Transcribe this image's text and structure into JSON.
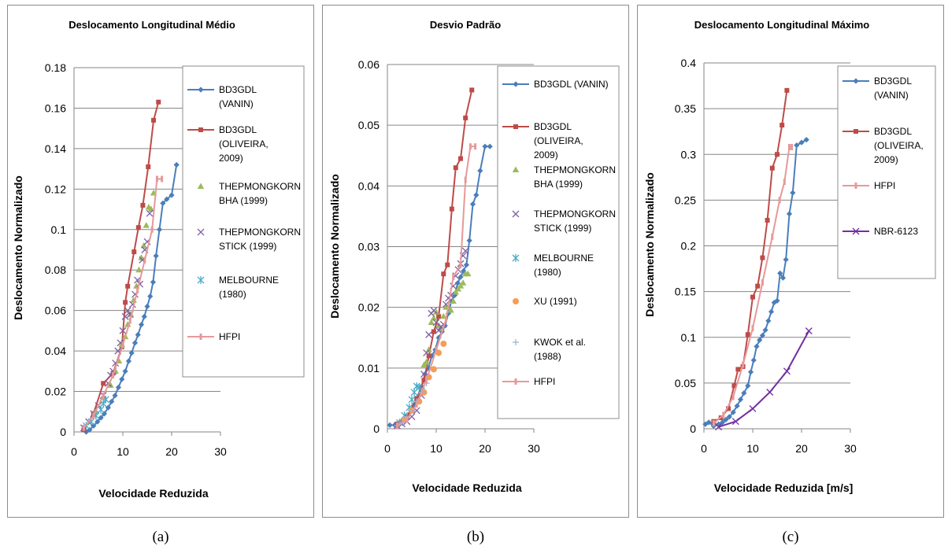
{
  "panels": [
    {
      "caption": "(a)",
      "chart_data": {
        "type": "line",
        "title": "Deslocamento Longitudinal Médio",
        "xlabel": "Velocidade Reduzida",
        "ylabel": "Deslocamento Normalizado",
        "xlim": [
          0,
          30
        ],
        "ylim": [
          0,
          0.18
        ],
        "xticks": [
          0,
          10,
          20,
          30
        ],
        "xtick_labels": [
          "0",
          "10",
          "20",
          "30"
        ],
        "yticks": [
          0,
          0.02,
          0.04,
          0.06,
          0.08,
          0.1,
          0.12,
          0.14,
          0.16,
          0.18
        ],
        "ytick_labels": [
          "0",
          "0.02",
          "0.04",
          "0.06",
          "0.08",
          "0.1",
          "0.12",
          "0.14",
          "0.16",
          "0.18"
        ],
        "grid": "horizontal",
        "legend_position": "right",
        "series": [
          {
            "name": "BD3GDL (VANIN)",
            "color": "#4a7ebb",
            "marker": "diamond",
            "line": true,
            "x": [
              2.5,
              3.2,
              4.0,
              4.8,
              5.5,
              6.2,
              7.0,
              7.7,
              8.4,
              9.1,
              9.8,
              10.5,
              11.2,
              11.8,
              12.5,
              13.1,
              13.8,
              14.4,
              15.0,
              15.6,
              16.2,
              16.8,
              17.5,
              18.2,
              19.0,
              20.0,
              21.0
            ],
            "y": [
              0.0,
              0.001,
              0.003,
              0.005,
              0.007,
              0.009,
              0.012,
              0.015,
              0.018,
              0.022,
              0.026,
              0.03,
              0.035,
              0.039,
              0.044,
              0.048,
              0.053,
              0.057,
              0.062,
              0.067,
              0.074,
              0.087,
              0.1,
              0.113,
              0.115,
              0.117,
              0.132
            ]
          },
          {
            "name": "BD3GDL (OLIVEIRA, 2009)",
            "color": "#be4b48",
            "marker": "square",
            "line": true,
            "x": [
              2.0,
              4.0,
              6.0,
              8.0,
              9.8,
              10.5,
              11.0,
              12.3,
              13.2,
              14.1,
              15.2,
              16.3,
              17.3
            ],
            "y": [
              0.001,
              0.009,
              0.024,
              0.029,
              0.042,
              0.064,
              0.072,
              0.089,
              0.101,
              0.112,
              0.131,
              0.154,
              0.163
            ]
          },
          {
            "name": "THEPMONGKORN BHA (1999)",
            "color": "#9bbb59",
            "marker": "triangle",
            "line": false,
            "x": [
              4.5,
              6.0,
              7.5,
              8.5,
              9.2,
              9.8,
              10.5,
              11.0,
              11.6,
              12.2,
              12.8,
              13.3,
              13.8,
              14.3,
              14.8,
              15.3,
              15.8,
              16.3
            ],
            "y": [
              0.01,
              0.017,
              0.023,
              0.03,
              0.035,
              0.043,
              0.047,
              0.053,
              0.058,
              0.065,
              0.072,
              0.08,
              0.086,
              0.092,
              0.102,
              0.111,
              0.11,
              0.118
            ]
          },
          {
            "name": "THEPMONGKORN STICK (1999)",
            "color": "#7d60a0",
            "marker": "x",
            "line": false,
            "x": [
              2.0,
              3.0,
              4.0,
              5.0,
              6.0,
              7.0,
              7.5,
              8.0,
              8.5,
              9.0,
              9.5,
              10.0,
              10.5,
              11.0,
              11.5,
              12.0,
              12.5,
              13.0,
              13.5,
              14.0,
              14.5,
              15.0,
              15.5
            ],
            "y": [
              0.002,
              0.005,
              0.009,
              0.013,
              0.018,
              0.024,
              0.028,
              0.03,
              0.034,
              0.04,
              0.044,
              0.05,
              0.057,
              0.06,
              0.058,
              0.063,
              0.068,
              0.075,
              0.073,
              0.085,
              0.09,
              0.094,
              0.108
            ]
          },
          {
            "name": "MELBOURNE (1980)",
            "color": "#4bacc6",
            "marker": "star",
            "line": false,
            "x": [
              2.5,
              3.5,
              4.5,
              5.5,
              6.0,
              6.5
            ],
            "y": [
              0.003,
              0.005,
              0.008,
              0.011,
              0.014,
              0.016
            ]
          },
          {
            "name": "HFPI",
            "color": "#e6999a",
            "marker": "dash",
            "line": true,
            "x": [
              2.0,
              4.0,
              6.0,
              8.0,
              10.0,
              11.5,
              13.0,
              14.5,
              16.0,
              17.0,
              18.0
            ],
            "y": [
              0.002,
              0.008,
              0.018,
              0.028,
              0.043,
              0.055,
              0.07,
              0.085,
              0.1,
              0.125,
              0.125
            ]
          }
        ]
      }
    },
    {
      "caption": "(b)",
      "chart_data": {
        "type": "line",
        "title": "Desvio Padrão",
        "xlabel": "Velocidade Reduzida",
        "ylabel": "Deslocamento Normalizado",
        "xlim": [
          0,
          30
        ],
        "ylim": [
          0,
          0.06
        ],
        "xticks": [
          0,
          10,
          20,
          30
        ],
        "xtick_labels": [
          "0",
          "10",
          "20",
          "30"
        ],
        "yticks": [
          0,
          0.01,
          0.02,
          0.03,
          0.04,
          0.05,
          0.06
        ],
        "ytick_labels": [
          "0",
          "0.01",
          "0.02",
          "0.03",
          "0.04",
          "0.05",
          "0.06"
        ],
        "grid": "horizontal",
        "legend_position": "right",
        "series": [
          {
            "name": "BD3GDL (VANIN)",
            "color": "#4a7ebb",
            "marker": "diamond",
            "line": true,
            "x": [
              0.5,
              1.5,
              2.5,
              3.2,
              4.0,
              4.8,
              5.5,
              6.2,
              7.0,
              7.7,
              8.4,
              9.1,
              9.8,
              10.5,
              11.2,
              11.8,
              12.5,
              13.1,
              13.8,
              14.4,
              15.0,
              15.6,
              16.2,
              16.8,
              17.5,
              18.2,
              19.0,
              20.0,
              21.0
            ],
            "y": [
              0.0006,
              0.0006,
              0.001,
              0.0015,
              0.002,
              0.003,
              0.004,
              0.005,
              0.007,
              0.009,
              0.01,
              0.012,
              0.013,
              0.015,
              0.016,
              0.017,
              0.019,
              0.021,
              0.022,
              0.024,
              0.025,
              0.026,
              0.027,
              0.031,
              0.037,
              0.0385,
              0.0425,
              0.0465,
              0.0465
            ]
          },
          {
            "name": "BD3GDL (OLIVEIRA, 2009)",
            "color": "#be4b48",
            "marker": "square",
            "line": true,
            "x": [
              2.0,
              4.0,
              6.0,
              7.5,
              8.5,
              9.5,
              10.5,
              11.5,
              12.3,
              13.2,
              14.0,
              15.0,
              16.0,
              17.3
            ],
            "y": [
              0.0008,
              0.002,
              0.005,
              0.008,
              0.012,
              0.016,
              0.0185,
              0.0255,
              0.027,
              0.0362,
              0.043,
              0.0445,
              0.0512,
              0.0558
            ]
          },
          {
            "name": "THEPMONGKORN BHA (1999)",
            "color": "#9bbb59",
            "marker": "triangle",
            "line": false,
            "x": [
              7.5,
              8.0,
              8.5,
              9.0,
              9.5,
              10.0,
              10.5,
              11.0,
              11.5,
              12.0,
              12.5,
              13.0,
              13.5,
              14.0,
              14.5,
              15.0,
              15.5,
              16.0,
              16.5
            ],
            "y": [
              0.0105,
              0.011,
              0.013,
              0.0175,
              0.0182,
              0.0192,
              0.017,
              0.0165,
              0.0185,
              0.02,
              0.02,
              0.0195,
              0.021,
              0.0225,
              0.023,
              0.0235,
              0.024,
              0.0255,
              0.0255
            ]
          },
          {
            "name": "THEPMONGKORN STICK (1999)",
            "color": "#7d60a0",
            "marker": "x",
            "line": false,
            "x": [
              2.0,
              3.0,
              4.0,
              5.0,
              6.0,
              7.0,
              7.5,
              8.0,
              8.5,
              9.0,
              9.5,
              10.0,
              10.5,
              11.0,
              11.5,
              12.0,
              12.5,
              13.0,
              13.5,
              14.0,
              14.5,
              15.0,
              15.5,
              16.0
            ],
            "y": [
              0.0005,
              0.0008,
              0.0012,
              0.002,
              0.003,
              0.0055,
              0.009,
              0.0125,
              0.0155,
              0.019,
              0.0195,
              0.0175,
              0.0162,
              0.0168,
              0.0172,
              0.0205,
              0.0215,
              0.022,
              0.0235,
              0.0252,
              0.0262,
              0.0272,
              0.0285,
              0.0293
            ]
          },
          {
            "name": "MELBOURNE (1980)",
            "color": "#4bacc6",
            "marker": "star",
            "line": false,
            "x": [
              2.5,
              3.5,
              4.5,
              5.0,
              5.5,
              6.0,
              6.5,
              7.0
            ],
            "y": [
              0.001,
              0.0022,
              0.0035,
              0.0048,
              0.006,
              0.007,
              0.0068,
              0.0062
            ]
          },
          {
            "name": "XU (1991)",
            "color": "#f59d56",
            "marker": "circle",
            "line": false,
            "x": [
              3.5,
              5.0,
              6.5,
              7.5,
              8.5,
              9.5,
              10.5,
              11.5
            ],
            "y": [
              0.0015,
              0.003,
              0.0045,
              0.006,
              0.0085,
              0.0098,
              0.0125,
              0.014
            ]
          },
          {
            "name": "KWOK et al. (1988)",
            "color": "#95b3d7",
            "marker": "plus",
            "line": false,
            "x": [
              2.0,
              3.0,
              4.0,
              5.0,
              6.0,
              7.0,
              8.0
            ],
            "y": [
              0.0005,
              0.001,
              0.002,
              0.003,
              0.0045,
              0.006,
              0.0075
            ]
          },
          {
            "name": "HFPI",
            "color": "#e6999a",
            "marker": "dash",
            "line": true,
            "x": [
              2.0,
              4.0,
              6.0,
              8.0,
              10.0,
              12.0,
              13.5,
              15.0,
              16.0,
              17.0,
              18.0
            ],
            "y": [
              0.0005,
              0.0015,
              0.004,
              0.008,
              0.013,
              0.018,
              0.025,
              0.027,
              0.041,
              0.0465,
              0.0465
            ]
          }
        ]
      }
    },
    {
      "caption": "(c)",
      "chart_data": {
        "type": "line",
        "title": "Deslocamento Longitudinal Máximo",
        "xlabel": "Velocidade Reduzida [m/s]",
        "ylabel": "Deslocamento Normalizado",
        "xlim": [
          0,
          30
        ],
        "ylim": [
          0,
          0.4
        ],
        "xticks": [
          0,
          10,
          20,
          30
        ],
        "xtick_labels": [
          "0",
          "10",
          "20",
          "30"
        ],
        "yticks": [
          0,
          0.05,
          0.1,
          0.15,
          0.2,
          0.25,
          0.3,
          0.35,
          0.4
        ],
        "ytick_labels": [
          "0",
          "0.05",
          "0.1",
          "0.15",
          "0.2",
          "0.25",
          "0.3",
          "0.35",
          "0.4"
        ],
        "grid": "horizontal",
        "legend_position": "right",
        "series": [
          {
            "name": "BD3GDL (VANIN)",
            "color": "#4a7ebb",
            "marker": "diamond",
            "line": true,
            "x": [
              0.3,
              1.0,
              2.0,
              3.0,
              3.8,
              4.5,
              5.2,
              6.0,
              6.8,
              7.5,
              8.2,
              9.0,
              9.6,
              10.2,
              10.8,
              11.4,
              12.0,
              12.6,
              13.2,
              13.8,
              14.4,
              15.0,
              15.6,
              16.2,
              16.8,
              17.5,
              18.2,
              19.0,
              20.0,
              21.0
            ],
            "y": [
              0.005,
              0.007,
              0.003,
              0.005,
              0.007,
              0.01,
              0.013,
              0.018,
              0.025,
              0.032,
              0.039,
              0.047,
              0.062,
              0.075,
              0.09,
              0.097,
              0.102,
              0.108,
              0.118,
              0.128,
              0.138,
              0.14,
              0.17,
              0.165,
              0.185,
              0.235,
              0.258,
              0.31,
              0.313,
              0.316
            ]
          },
          {
            "name": "BD3GDL (OLIVEIRA, 2009)",
            "color": "#be4b48",
            "marker": "square",
            "line": true,
            "x": [
              2.0,
              3.5,
              5.0,
              6.2,
              7.0,
              8.0,
              9.0,
              10.0,
              11.0,
              12.0,
              13.0,
              14.0,
              15.0,
              16.0,
              17.0
            ],
            "y": [
              0.008,
              0.012,
              0.022,
              0.047,
              0.065,
              0.068,
              0.103,
              0.144,
              0.156,
              0.187,
              0.228,
              0.285,
              0.3,
              0.332,
              0.37
            ]
          },
          {
            "name": "HFPI",
            "color": "#e6999a",
            "marker": "dash",
            "line": true,
            "x": [
              2.0,
              4.0,
              6.0,
              8.0,
              10.0,
              12.0,
              14.0,
              15.5,
              16.5,
              17.5,
              18.0
            ],
            "y": [
              0.006,
              0.015,
              0.035,
              0.07,
              0.11,
              0.16,
              0.21,
              0.25,
              0.27,
              0.308,
              0.308
            ]
          },
          {
            "name": "NBR-6123",
            "color": "#7030a0",
            "marker": "x",
            "line": true,
            "x": [
              3.0,
              6.5,
              10.0,
              13.5,
              17.0,
              21.5
            ],
            "y": [
              0.002,
              0.008,
              0.022,
              0.04,
              0.063,
              0.107
            ]
          }
        ]
      }
    }
  ]
}
